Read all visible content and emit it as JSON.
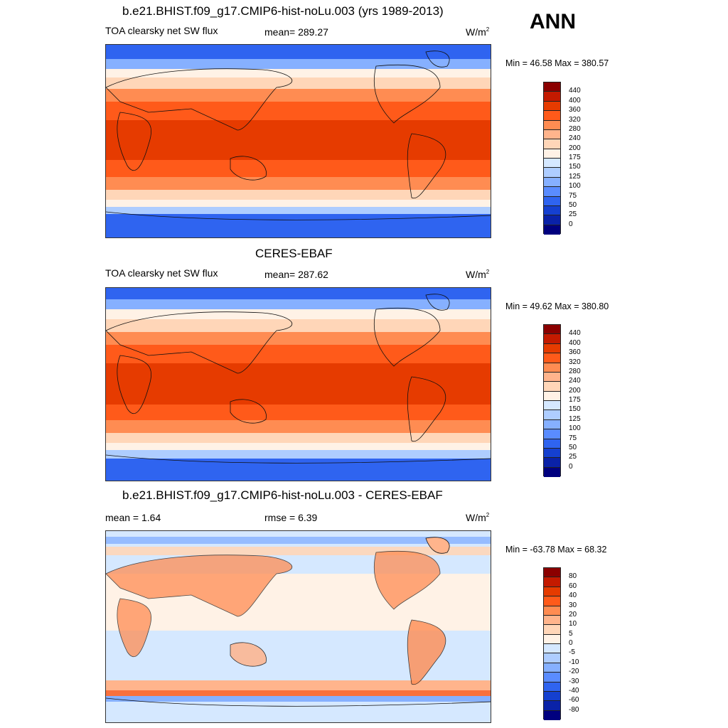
{
  "season": "ANN",
  "panels": [
    {
      "title": "b.e21.BHIST.f09_g17.CMIP6-hist-noLu.003 (yrs 1989-2013)",
      "left_label": "TOA clearsky net SW flux",
      "mid_label": "mean= 289.27",
      "unit_base": "W/m",
      "unit_sup": "2",
      "minmax": "Min =  46.58 Max = 380.57",
      "colorbar": {
        "ticks": [
          "440",
          "400",
          "360",
          "320",
          "280",
          "240",
          "200",
          "175",
          "150",
          "125",
          "100",
          "75",
          "50",
          "25",
          "0"
        ],
        "colors": [
          "#8b0000",
          "#c41a00",
          "#e63b00",
          "#ff5a1a",
          "#ff8c52",
          "#ffb48c",
          "#ffd6b8",
          "#fff2e6",
          "#d5e8ff",
          "#aecdff",
          "#86b0ff",
          "#5a8cff",
          "#2f64f0",
          "#1540d0",
          "#0a22a8",
          "#00007f"
        ]
      }
    },
    {
      "title": "CERES-EBAF",
      "left_label": "TOA clearsky net SW flux",
      "mid_label": "mean= 287.62",
      "unit_base": "W/m",
      "unit_sup": "2",
      "minmax": "Min =  49.62 Max = 380.80",
      "colorbar": {
        "ticks": [
          "440",
          "400",
          "360",
          "320",
          "280",
          "240",
          "200",
          "175",
          "150",
          "125",
          "100",
          "75",
          "50",
          "25",
          "0"
        ],
        "colors": [
          "#8b0000",
          "#c41a00",
          "#e63b00",
          "#ff5a1a",
          "#ff8c52",
          "#ffb48c",
          "#ffd6b8",
          "#fff2e6",
          "#d5e8ff",
          "#aecdff",
          "#86b0ff",
          "#5a8cff",
          "#2f64f0",
          "#1540d0",
          "#0a22a8",
          "#00007f"
        ]
      }
    },
    {
      "title": "b.e21.BHIST.f09_g17.CMIP6-hist-noLu.003 - CERES-EBAF",
      "left_label": "mean =   1.64",
      "mid_label": "rmse =   6.39",
      "unit_base": "W/m",
      "unit_sup": "2",
      "minmax": "Min = -63.78 Max =  68.32",
      "colorbar": {
        "ticks": [
          "80",
          "60",
          "40",
          "30",
          "20",
          "10",
          "5",
          "0",
          "-5",
          "-10",
          "-20",
          "-30",
          "-40",
          "-60",
          "-80"
        ],
        "colors": [
          "#8b0000",
          "#c41a00",
          "#e63b00",
          "#ff5a1a",
          "#ff8c52",
          "#ffb48c",
          "#ffd6b8",
          "#fff2e6",
          "#d5e8ff",
          "#aecdff",
          "#86b0ff",
          "#5a8cff",
          "#2f64f0",
          "#1540d0",
          "#0a22a8",
          "#00007f"
        ]
      }
    }
  ]
}
